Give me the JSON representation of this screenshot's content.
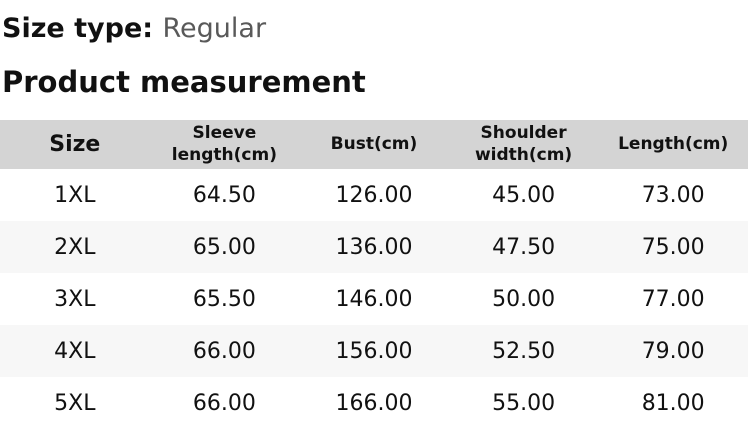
{
  "page": {
    "size_type_label": "Size type:",
    "size_type_value": "Regular",
    "section_title": "Product measurement"
  },
  "colors": {
    "header_bg": "#d4d4d4",
    "alt_row_bg": "#f7f7f7",
    "muted_text": "#595959",
    "text": "#111111"
  },
  "table": {
    "columns": [
      "Size",
      "Sleeve length(cm)",
      "Bust(cm)",
      "Shoulder width(cm)",
      "Length(cm)"
    ],
    "rows": [
      {
        "size": "1XL",
        "sleeve_length": "64.50",
        "bust": "126.00",
        "shoulder_width": "45.00",
        "length": "73.00"
      },
      {
        "size": "2XL",
        "sleeve_length": "65.00",
        "bust": "136.00",
        "shoulder_width": "47.50",
        "length": "75.00"
      },
      {
        "size": "3XL",
        "sleeve_length": "65.50",
        "bust": "146.00",
        "shoulder_width": "50.00",
        "length": "77.00"
      },
      {
        "size": "4XL",
        "sleeve_length": "66.00",
        "bust": "156.00",
        "shoulder_width": "52.50",
        "length": "79.00"
      },
      {
        "size": "5XL",
        "sleeve_length": "66.00",
        "bust": "166.00",
        "shoulder_width": "55.00",
        "length": "81.00"
      }
    ]
  }
}
